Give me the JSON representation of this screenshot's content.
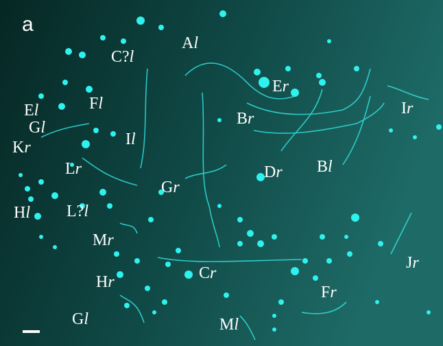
{
  "panel_label": "a",
  "labels": [
    {
      "letter": "A",
      "side": "l"
    },
    {
      "letter": "C?",
      "side": "l"
    },
    {
      "letter": "E",
      "side": "r"
    },
    {
      "letter": "F",
      "side": "l"
    },
    {
      "letter": "E",
      "side": "l"
    },
    {
      "letter": "G",
      "side": "l"
    },
    {
      "letter": "K",
      "side": "r"
    },
    {
      "letter": "I",
      "side": "l"
    },
    {
      "letter": "B",
      "side": "r"
    },
    {
      "letter": "I",
      "side": "r"
    },
    {
      "letter": "L",
      "side": "r"
    },
    {
      "letter": "G",
      "side": "r"
    },
    {
      "letter": "D",
      "side": "r"
    },
    {
      "letter": "B",
      "side": "l"
    },
    {
      "letter": "H",
      "side": "l"
    },
    {
      "letter": "L?",
      "side": "l"
    },
    {
      "letter": "M",
      "side": "r"
    },
    {
      "letter": "C",
      "side": "r"
    },
    {
      "letter": "J",
      "side": "r"
    },
    {
      "letter": "H",
      "side": "r"
    },
    {
      "letter": "F",
      "side": "r"
    },
    {
      "letter": "G",
      "side": "l"
    },
    {
      "letter": "M",
      "side": "l"
    }
  ]
}
